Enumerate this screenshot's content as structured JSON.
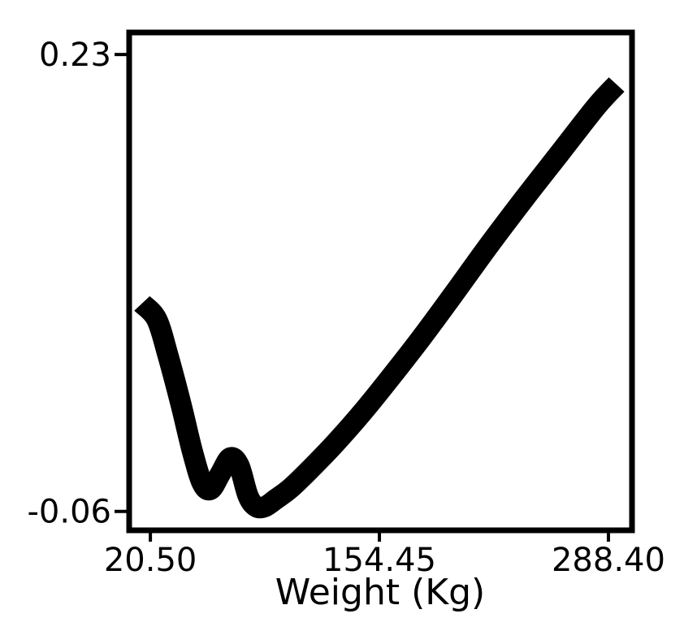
{
  "chart_data": {
    "type": "line",
    "title": "",
    "xlabel": "Weight (Kg)",
    "ylabel": "",
    "xlim": [
      8.1,
      302.2
    ],
    "ylim": [
      -0.072,
      0.244
    ],
    "x_ticks": [
      20.5,
      154.45,
      288.4
    ],
    "x_tick_labels": [
      "20.50",
      "154.45",
      "288.40"
    ],
    "y_ticks": [
      -0.06,
      0.23
    ],
    "y_tick_labels": [
      "-0.06",
      "0.23"
    ],
    "grid": false,
    "legend": "none",
    "series": [
      {
        "color": "#000000",
        "x": [
          15.6,
          24.2,
          30.8,
          38.4,
          45.1,
          50.8,
          55.8,
          61.5,
          67.2,
          72.4,
          77.6,
          82.3,
          87.5,
          94.2,
          102.8,
          114.2,
          128.4,
          144.6,
          161.7,
          179.6,
          198.6,
          218.6,
          239.5,
          260.4,
          281.3,
          293.2
        ],
        "y": [
          0.072,
          0.062,
          0.039,
          0.008,
          -0.022,
          -0.042,
          -0.046,
          -0.036,
          -0.026,
          -0.031,
          -0.05,
          -0.057,
          -0.057,
          -0.052,
          -0.045,
          -0.033,
          -0.017,
          0.003,
          0.026,
          0.051,
          0.079,
          0.109,
          0.139,
          0.168,
          0.197,
          0.211
        ]
      }
    ]
  }
}
